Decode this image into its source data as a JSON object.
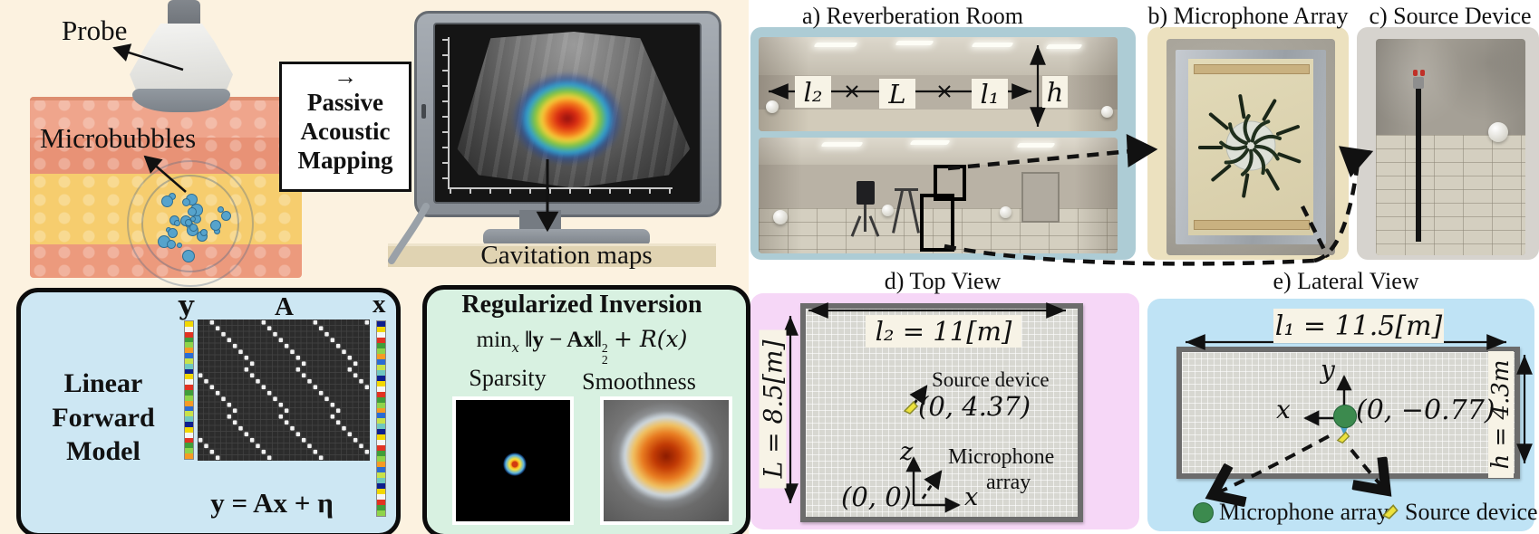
{
  "left": {
    "probe_label": "Probe",
    "microbubbles_label": "Microbubbles",
    "pam": {
      "arrow": "→",
      "lines": [
        "Passive",
        "Acoustic",
        "Mapping"
      ]
    },
    "cavitation_label": "Cavitation maps",
    "forward": {
      "title_lines": [
        "Linear",
        "Forward",
        "Model"
      ],
      "vec_y": "y",
      "mat_A": "A",
      "vec_x": "x",
      "equation": "y = Ax + η"
    },
    "inversion": {
      "title": "Regularized Inversion",
      "eq": {
        "min": "min",
        "min_sub": "x",
        "open": "‖",
        "body": "y − Ax",
        "close": "‖",
        "sup": "2",
        "sub": "2",
        "tail": "+ R(x)"
      },
      "sparsity_label": "Sparsity",
      "smoothness_label": "Smoothness"
    }
  },
  "right": {
    "captions": {
      "a": "a) Reverberation Room",
      "b": "b) Microphone Array",
      "c": "c) Source Device",
      "d": "d) Top View",
      "e": "e) Lateral View"
    },
    "room_dims": {
      "l2": "l₂",
      "L": "L",
      "l1": "l₁",
      "h": "h"
    },
    "top_view": {
      "width_label": "l₂ = 11[m]",
      "depth_label": "L = 8.5[m]",
      "source_label": "Source device",
      "source_coord": "(0, 4.37)",
      "origin_label": "(0, 0)",
      "axis_z": "z",
      "axis_x": "x",
      "mic_label_1": "Microphone",
      "mic_label_2": "array"
    },
    "lateral_view": {
      "width_label": "l₁ = 11.5[m]",
      "height_label": "h = 4.3m",
      "mic_coord": "(0, −0.77)",
      "axis_y": "y",
      "axis_x": "x",
      "legend_mic": "Microphone array",
      "legend_source": "Source device"
    }
  },
  "decor": {
    "left_bg": "#fcf2e0",
    "panel_a_bg": "#adccd5",
    "panel_b_bg": "#ece1bf",
    "panel_c_bg": "#d6d3ce",
    "panel_d_bg": "#f6d7f7",
    "panel_e_bg": "#bfe3f5",
    "forward_box_bg": "#cde7f3",
    "inversion_box_bg": "#d8f1e1",
    "label_bg": "#f7f3e6",
    "mic_green": "#3c8a4e",
    "source_yellow": "#ede23c",
    "blue_arrow": "#4aa0c8",
    "strip_palette": [
      "#f2d800",
      "#3f9e3a",
      "#2a6cd4",
      "#0d1f8e",
      "#e23222",
      "#f59b24",
      "#6fc8c0",
      "#f5f5f5",
      "#8fd44a",
      "#c8e24a"
    ]
  }
}
